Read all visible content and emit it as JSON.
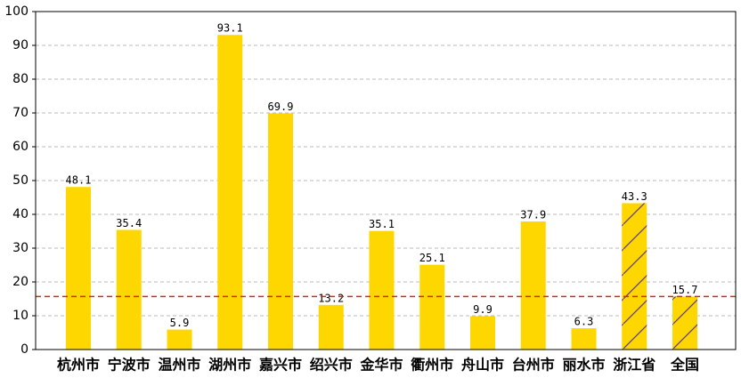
{
  "chart_data": {
    "type": "bar",
    "categories": [
      "杭州市",
      "宁波市",
      "温州市",
      "湖州市",
      "嘉兴市",
      "绍兴市",
      "金华市",
      "衢州市",
      "舟山市",
      "台州市",
      "丽水市",
      "浙江省",
      "全国"
    ],
    "values": [
      48.1,
      35.4,
      5.9,
      93.1,
      69.9,
      13.2,
      35.1,
      25.1,
      9.9,
      37.9,
      6.3,
      43.3,
      15.7
    ],
    "hatch": [
      false,
      false,
      false,
      false,
      false,
      false,
      false,
      false,
      false,
      false,
      false,
      true,
      true
    ],
    "color": "#ffd700",
    "ylim": [
      0,
      100
    ],
    "yticks": [
      0,
      10,
      20,
      30,
      40,
      50,
      60,
      70,
      80,
      90,
      100
    ],
    "grid": true,
    "reference_line": {
      "value": 15.7,
      "color": "#d62728"
    }
  }
}
